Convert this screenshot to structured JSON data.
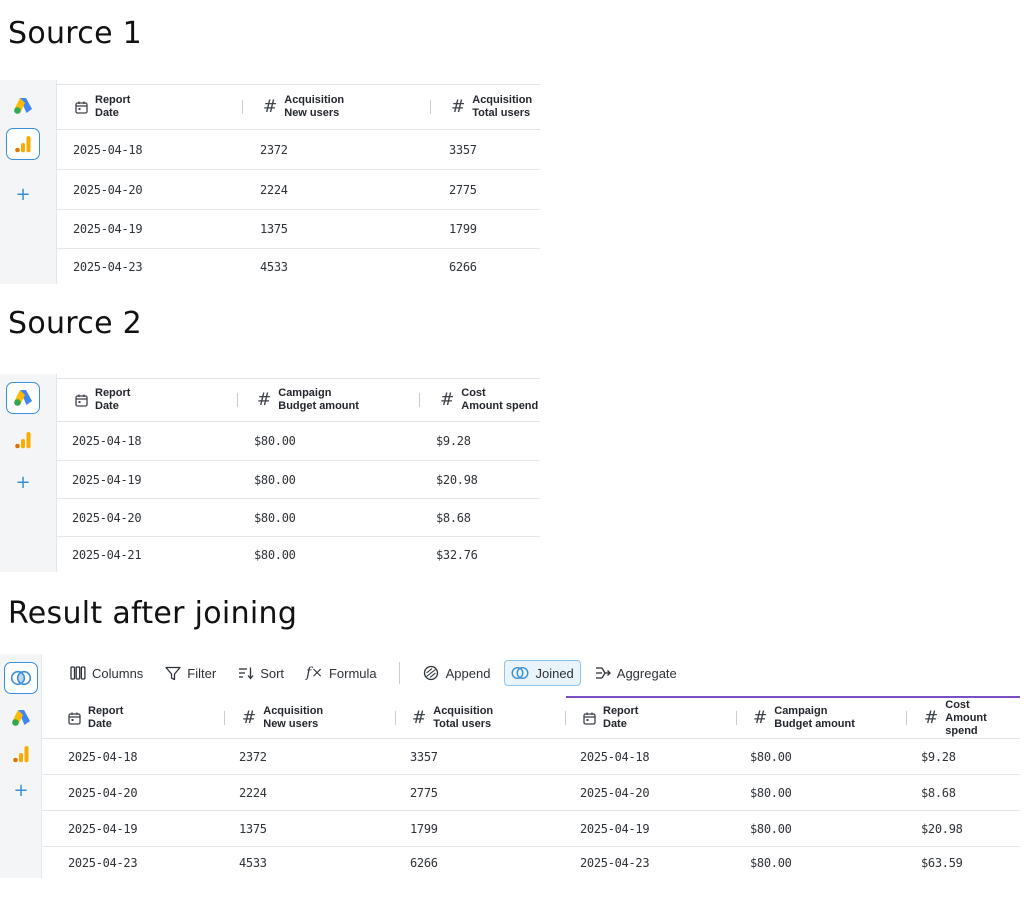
{
  "sections": {
    "source1": "Source 1",
    "source2": "Source 2",
    "result": "Result after joining"
  },
  "icons": {
    "google_ads": "google-ads-icon",
    "analytics": "google-analytics-icon",
    "add": "+",
    "joined": "joined-icon",
    "calendar": "calendar-icon",
    "hash": "#"
  },
  "source1": {
    "columns": [
      {
        "type": "date",
        "line1": "Report",
        "line2": "Date"
      },
      {
        "type": "number",
        "line1": "Acquisition",
        "line2": "New users"
      },
      {
        "type": "number",
        "line1": "Acquisition",
        "line2": "Total users"
      }
    ],
    "rows": [
      [
        "2025-04-18",
        "2372",
        "3357"
      ],
      [
        "2025-04-20",
        "2224",
        "2775"
      ],
      [
        "2025-04-19",
        "1375",
        "1799"
      ],
      [
        "2025-04-23",
        "4533",
        "6266"
      ]
    ]
  },
  "source2": {
    "columns": [
      {
        "type": "date",
        "line1": "Report",
        "line2": "Date"
      },
      {
        "type": "number",
        "line1": "Campaign",
        "line2": "Budget amount"
      },
      {
        "type": "number",
        "line1": "Cost",
        "line2": "Amount spend"
      }
    ],
    "rows": [
      [
        "2025-04-18",
        "$80.00",
        "$9.28"
      ],
      [
        "2025-04-19",
        "$80.00",
        "$20.98"
      ],
      [
        "2025-04-20",
        "$80.00",
        "$8.68"
      ],
      [
        "2025-04-21",
        "$80.00",
        "$32.76"
      ]
    ]
  },
  "toolbar": {
    "columns": "Columns",
    "filter": "Filter",
    "sort": "Sort",
    "formula": "Formula",
    "append": "Append",
    "joined": "Joined",
    "aggregate": "Aggregate"
  },
  "result": {
    "columns": [
      {
        "type": "date",
        "line1": "Report",
        "line2": "Date"
      },
      {
        "type": "number",
        "line1": "Acquisition",
        "line2": "New users"
      },
      {
        "type": "number",
        "line1": "Acquisition",
        "line2": "Total users"
      },
      {
        "type": "date",
        "line1": "Report",
        "line2": "Date"
      },
      {
        "type": "number",
        "line1": "Campaign",
        "line2": "Budget amount"
      },
      {
        "type": "number",
        "line1": "Cost",
        "line2": "Amount spend"
      }
    ],
    "rows": [
      [
        "2025-04-18",
        "2372",
        "3357",
        "2025-04-18",
        "$80.00",
        "$9.28"
      ],
      [
        "2025-04-20",
        "2224",
        "2775",
        "2025-04-20",
        "$80.00",
        "$8.68"
      ],
      [
        "2025-04-19",
        "1375",
        "1799",
        "2025-04-19",
        "$80.00",
        "$20.98"
      ],
      [
        "2025-04-23",
        "4533",
        "6266",
        "2025-04-23",
        "$80.00",
        "$63.59"
      ]
    ]
  },
  "colors": {
    "accent": "#3a8fd6",
    "join_line": "#7b4fc4",
    "ads_blue": "#4285f4",
    "ads_yellow": "#fbbc04",
    "ads_green": "#34a853",
    "analytics_orange": "#f9ab00",
    "analytics_dark": "#e37400"
  }
}
